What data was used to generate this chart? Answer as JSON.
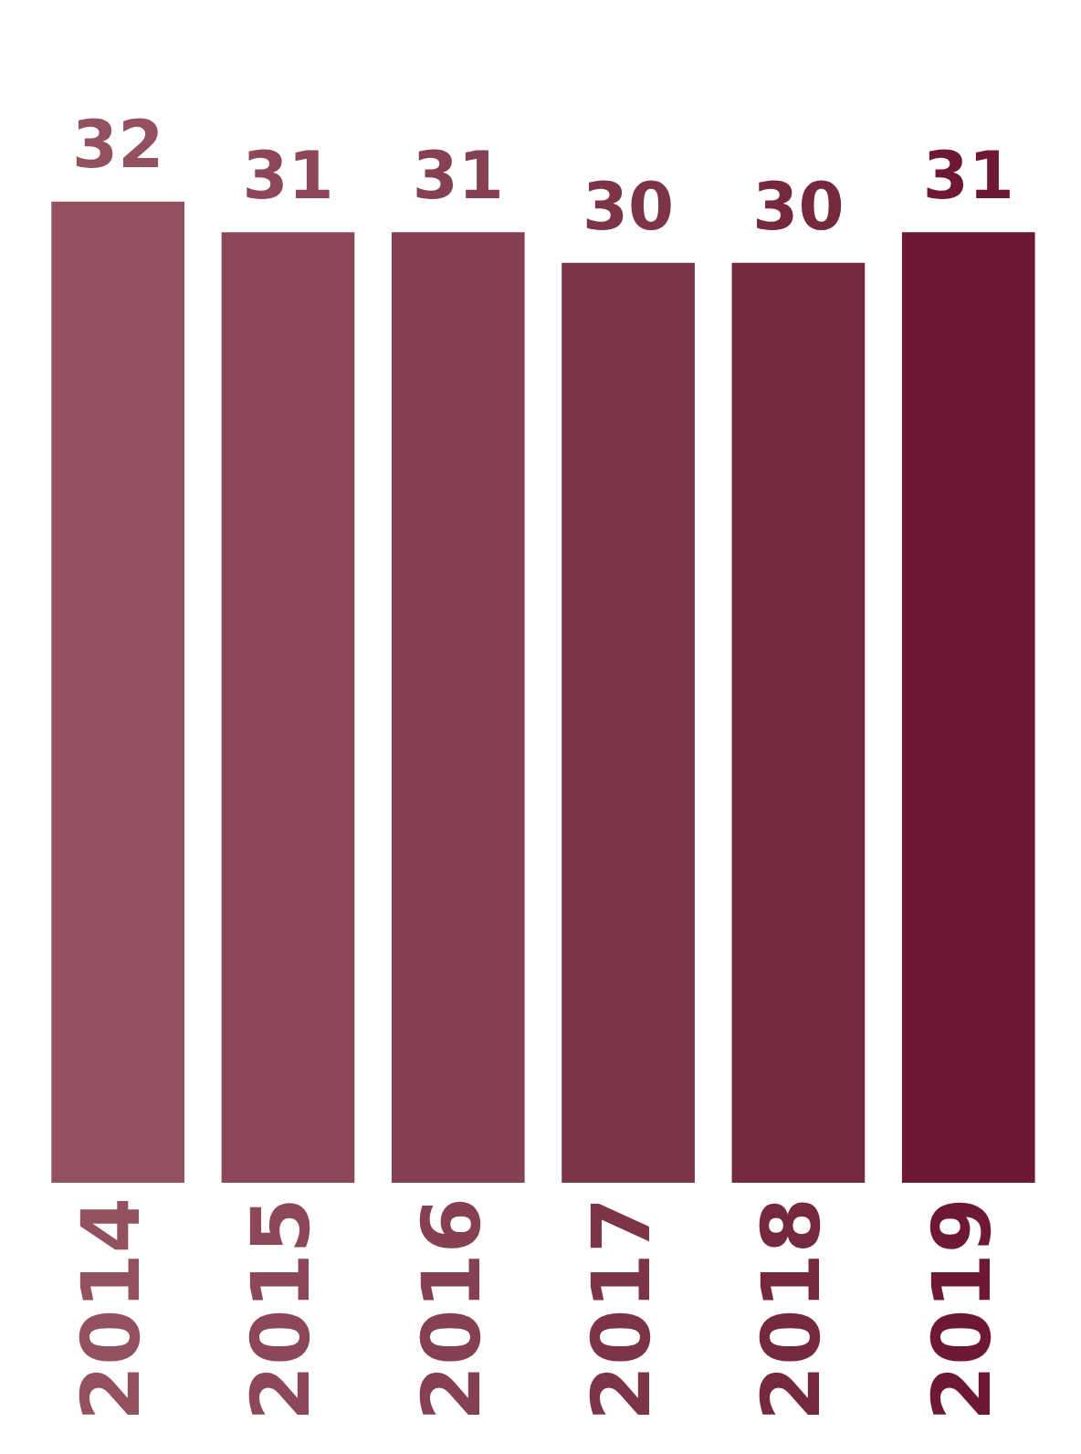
{
  "chart_data": {
    "type": "bar",
    "categories": [
      "2014",
      "2015",
      "2016",
      "2017",
      "2018",
      "2019"
    ],
    "values": [
      32,
      31,
      31,
      30,
      30,
      31
    ],
    "colors": [
      "#93505f",
      "#8c4858",
      "#854153",
      "#7d3449",
      "#76283f",
      "#6e1833"
    ],
    "data_labels": true,
    "relative": false,
    "grid": false,
    "legend": false
  }
}
